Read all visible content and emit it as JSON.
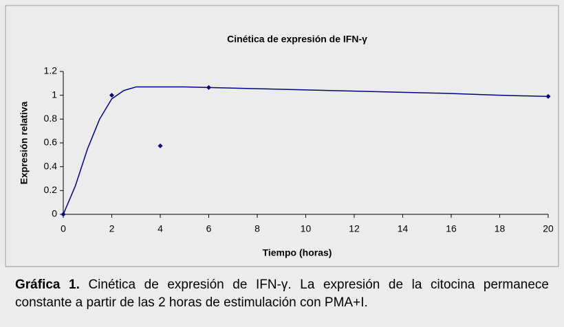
{
  "chart_data": {
    "type": "scatter",
    "title": "Cinética de expresión de IFN-γ",
    "xlabel": "Tiempo (horas)",
    "ylabel": "Expresión relativa",
    "series": [
      {
        "type": "scatter",
        "color": "#000080",
        "x": [
          0,
          2,
          4,
          6,
          20
        ],
        "values": [
          0,
          1,
          0.575,
          1.065,
          0.99
        ]
      },
      {
        "type": "line",
        "color": "#000080",
        "x": [
          0,
          0.5,
          1,
          1.5,
          2,
          2.5,
          3,
          4,
          5,
          6,
          8,
          10,
          12,
          14,
          16,
          18,
          20
        ],
        "values": [
          0,
          0.24,
          0.55,
          0.8,
          0.97,
          1.04,
          1.07,
          1.07,
          1.07,
          1.065,
          1.055,
          1.045,
          1.035,
          1.025,
          1.015,
          1.0,
          0.99
        ]
      }
    ],
    "xlim": [
      0,
      20
    ],
    "xticks": [
      0,
      2,
      4,
      6,
      8,
      10,
      12,
      14,
      16,
      18,
      20
    ],
    "ylim": [
      0,
      1.2
    ],
    "yticks": [
      0,
      0.2,
      0.4,
      0.6,
      0.8,
      1,
      1.2
    ]
  },
  "caption": {
    "label": "Gráfica 1.",
    "text": "Cinética de expresión de IFN-γ. La expresión de la citocina permanece constante a partir de las 2 horas de estimulación con PMA+I."
  }
}
